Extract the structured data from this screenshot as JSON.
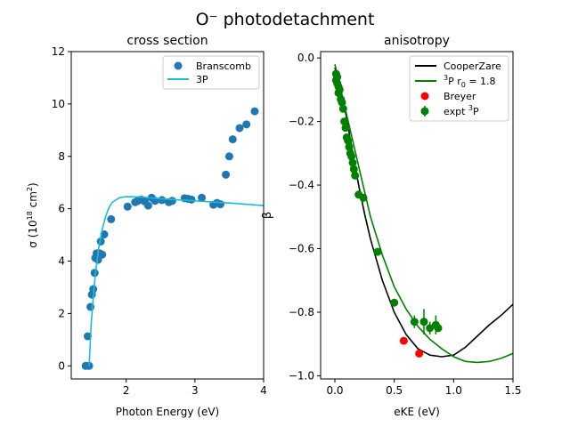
{
  "figure": {
    "suptitle": "O⁻ photodetachment"
  },
  "chart_data": [
    {
      "type": "scatter",
      "title": "cross section",
      "xlabel": "Photon Energy (eV)",
      "ylabel_main": "σ (10",
      "ylabel_exp": "18",
      "ylabel_tail": " cm",
      "ylabel_exp2": "2",
      "ylabel_end": ")",
      "xlim": [
        1.2,
        4.0
      ],
      "ylim": [
        -0.5,
        12
      ],
      "xticks": [
        {
          "v": 2,
          "label": "2"
        },
        {
          "v": 3,
          "label": "3"
        },
        {
          "v": 4,
          "label": "4"
        }
      ],
      "yticks": [
        {
          "v": 0,
          "label": "0"
        },
        {
          "v": 2,
          "label": "2"
        },
        {
          "v": 4,
          "label": "4"
        },
        {
          "v": 6,
          "label": "6"
        },
        {
          "v": 8,
          "label": "8"
        },
        {
          "v": 10,
          "label": "10"
        },
        {
          "v": 12,
          "label": "12"
        }
      ],
      "legend_position": "upper right",
      "series": [
        {
          "name": "Branscomb",
          "kind": "scatter",
          "color": "#1f77b4",
          "points": [
            [
              1.41,
              0.0
            ],
            [
              1.44,
              1.13
            ],
            [
              1.46,
              0.0
            ],
            [
              1.48,
              2.25
            ],
            [
              1.5,
              2.72
            ],
            [
              1.52,
              2.93
            ],
            [
              1.54,
              3.55
            ],
            [
              1.55,
              4.12
            ],
            [
              1.57,
              4.3
            ],
            [
              1.59,
              4.05
            ],
            [
              1.61,
              4.3
            ],
            [
              1.63,
              4.75
            ],
            [
              1.65,
              4.25
            ],
            [
              1.68,
              5.02
            ],
            [
              1.78,
              5.6
            ],
            [
              2.02,
              6.08
            ],
            [
              2.13,
              6.25
            ],
            [
              2.17,
              6.3
            ],
            [
              2.22,
              6.35
            ],
            [
              2.27,
              6.28
            ],
            [
              2.32,
              6.12
            ],
            [
              2.37,
              6.42
            ],
            [
              2.42,
              6.3
            ],
            [
              2.52,
              6.33
            ],
            [
              2.62,
              6.25
            ],
            [
              2.67,
              6.3
            ],
            [
              2.85,
              6.4
            ],
            [
              2.9,
              6.38
            ],
            [
              2.95,
              6.35
            ],
            [
              3.1,
              6.42
            ],
            [
              3.27,
              6.15
            ],
            [
              3.32,
              6.22
            ],
            [
              3.37,
              6.17
            ],
            [
              3.45,
              7.3
            ],
            [
              3.5,
              8.0
            ],
            [
              3.55,
              8.65
            ],
            [
              3.65,
              9.08
            ],
            [
              3.75,
              9.22
            ],
            [
              3.87,
              9.72
            ]
          ]
        },
        {
          "name": "3P",
          "kind": "line",
          "color": "#17becf",
          "points": [
            [
              1.46,
              0.0
            ],
            [
              1.47,
              0.5
            ],
            [
              1.49,
              1.6
            ],
            [
              1.52,
              2.6
            ],
            [
              1.55,
              3.5
            ],
            [
              1.6,
              4.5
            ],
            [
              1.65,
              5.2
            ],
            [
              1.7,
              5.7
            ],
            [
              1.75,
              6.05
            ],
            [
              1.8,
              6.25
            ],
            [
              1.9,
              6.42
            ],
            [
              2.0,
              6.46
            ],
            [
              2.2,
              6.45
            ],
            [
              2.5,
              6.38
            ],
            [
              3.0,
              6.3
            ],
            [
              3.5,
              6.22
            ],
            [
              4.0,
              6.12
            ]
          ]
        }
      ]
    },
    {
      "type": "scatter",
      "title": "anisotropy",
      "xlabel": "eKE (eV)",
      "ylabel": "β",
      "xlim": [
        -0.12,
        1.5
      ],
      "ylim": [
        -1.01,
        0.02
      ],
      "xticks": [
        {
          "v": 0.0,
          "label": "0.0"
        },
        {
          "v": 0.5,
          "label": "0.5"
        },
        {
          "v": 1.0,
          "label": "1.0"
        },
        {
          "v": 1.5,
          "label": "1.5"
        }
      ],
      "yticks": [
        {
          "v": 0.0,
          "label": "0.0"
        },
        {
          "v": -0.2,
          "label": "−0.2"
        },
        {
          "v": -0.4,
          "label": "−0.4"
        },
        {
          "v": -0.6,
          "label": "−0.6"
        },
        {
          "v": -0.8,
          "label": "−0.8"
        },
        {
          "v": -1.0,
          "label": "−1.0"
        }
      ],
      "legend_position": "upper right",
      "series": [
        {
          "name": "CooperZare",
          "kind": "line",
          "color": "#000000",
          "points": [
            [
              0.0,
              -0.03
            ],
            [
              0.05,
              -0.1
            ],
            [
              0.1,
              -0.19
            ],
            [
              0.15,
              -0.3
            ],
            [
              0.2,
              -0.4
            ],
            [
              0.25,
              -0.49
            ],
            [
              0.3,
              -0.57
            ],
            [
              0.4,
              -0.7
            ],
            [
              0.5,
              -0.8
            ],
            [
              0.6,
              -0.87
            ],
            [
              0.7,
              -0.915
            ],
            [
              0.8,
              -0.935
            ],
            [
              0.9,
              -0.94
            ],
            [
              1.0,
              -0.935
            ],
            [
              1.1,
              -0.91
            ],
            [
              1.2,
              -0.875
            ],
            [
              1.3,
              -0.84
            ],
            [
              1.4,
              -0.81
            ],
            [
              1.5,
              -0.775
            ]
          ]
        },
        {
          "name_super": "3",
          "name_main": "P r",
          "name_sub": "0",
          "name_tail": " = 1.8",
          "kind": "line",
          "color": "#008000",
          "points": [
            [
              0.0,
              -0.02
            ],
            [
              0.05,
              -0.1
            ],
            [
              0.1,
              -0.18
            ],
            [
              0.15,
              -0.26
            ],
            [
              0.2,
              -0.34
            ],
            [
              0.25,
              -0.42
            ],
            [
              0.3,
              -0.5
            ],
            [
              0.4,
              -0.62
            ],
            [
              0.5,
              -0.72
            ],
            [
              0.6,
              -0.79
            ],
            [
              0.7,
              -0.845
            ],
            [
              0.8,
              -0.885
            ],
            [
              0.9,
              -0.915
            ],
            [
              1.0,
              -0.94
            ],
            [
              1.1,
              -0.955
            ],
            [
              1.2,
              -0.958
            ],
            [
              1.3,
              -0.955
            ],
            [
              1.4,
              -0.945
            ],
            [
              1.5,
              -0.93
            ]
          ]
        },
        {
          "name": "Breyer",
          "kind": "scatter",
          "color": "#ff0000",
          "points": [
            [
              0.58,
              -0.89
            ],
            [
              0.71,
              -0.93
            ]
          ]
        },
        {
          "name_main": "expt ",
          "name_super": "3",
          "name_tail": "P",
          "kind": "errorbar",
          "color": "#008000",
          "points": [
            [
              0.01,
              -0.05,
              0.005
            ],
            [
              0.01,
              -0.07,
              0.005
            ],
            [
              0.02,
              -0.06,
              0.005
            ],
            [
              0.02,
              -0.08,
              0.005
            ],
            [
              0.03,
              -0.09,
              0.005
            ],
            [
              0.03,
              -0.11,
              0.005
            ],
            [
              0.04,
              -0.1,
              0.005
            ],
            [
              0.05,
              -0.13,
              0.005
            ],
            [
              0.06,
              -0.14,
              0.005
            ],
            [
              0.07,
              -0.16,
              0.005
            ],
            [
              0.08,
              -0.2,
              0.005
            ],
            [
              0.09,
              -0.22,
              0.005
            ],
            [
              0.1,
              -0.25,
              0.005
            ],
            [
              0.11,
              -0.26,
              0.005
            ],
            [
              0.12,
              -0.28,
              0.005
            ],
            [
              0.13,
              -0.3,
              0.005
            ],
            [
              0.14,
              -0.31,
              0.005
            ],
            [
              0.15,
              -0.33,
              0.005
            ],
            [
              0.16,
              -0.35,
              0.005
            ],
            [
              0.17,
              -0.37,
              0.005
            ],
            [
              0.2,
              -0.43,
              0.01
            ],
            [
              0.24,
              -0.44,
              0.01
            ],
            [
              0.36,
              -0.61,
              0.01
            ],
            [
              0.5,
              -0.77,
              0.01
            ],
            [
              0.67,
              -0.83,
              0.02
            ],
            [
              0.75,
              -0.83,
              0.04
            ],
            [
              0.8,
              -0.85,
              0.02
            ],
            [
              0.85,
              -0.84,
              0.03
            ],
            [
              0.87,
              -0.85,
              0.01
            ]
          ]
        }
      ]
    }
  ]
}
